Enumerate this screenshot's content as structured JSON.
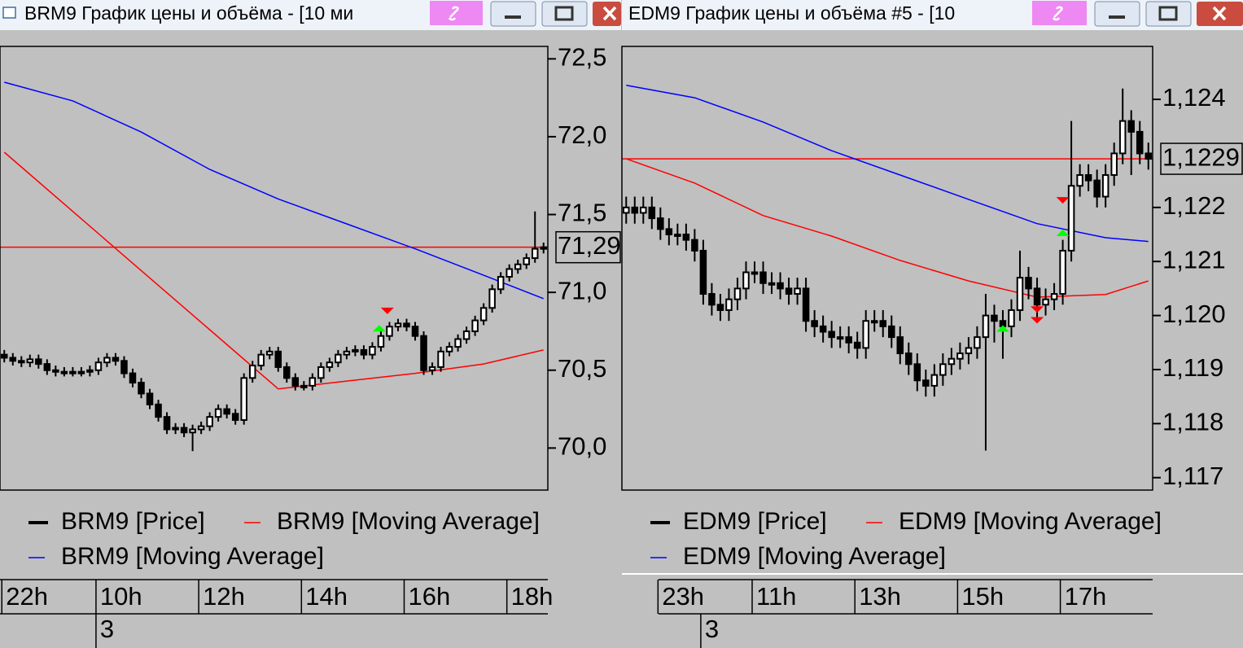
{
  "chart_data": [
    {
      "type": "candlestick",
      "title": "BRM9 График цены и объёма - [10 ми",
      "xlim": [
        -0.5,
        63.5
      ],
      "ylim": [
        69.73,
        72.58
      ],
      "yticks": [
        {
          "value": 70.0,
          "label": "70,0"
        },
        {
          "value": 70.5,
          "label": "70,5"
        },
        {
          "value": 71.0,
          "label": "71,0"
        },
        {
          "value": 71.5,
          "label": "71,5"
        },
        {
          "value": 72.0,
          "label": "72,0"
        },
        {
          "value": 72.5,
          "label": "72,5"
        }
      ],
      "xticks": [
        {
          "value": 0,
          "label": "22h"
        },
        {
          "value": 11,
          "label": "10h"
        },
        {
          "value": 23,
          "label": "12h"
        },
        {
          "value": 35,
          "label": "14h"
        },
        {
          "value": 47,
          "label": "16h"
        },
        {
          "value": 59,
          "label": "18h"
        }
      ],
      "day_ticks": [
        {
          "value": 11,
          "label": "3"
        }
      ],
      "series": [
        {
          "name": "BRM9 [Price]",
          "color": "#000000",
          "x": [
            0,
            1,
            2,
            3,
            4,
            5,
            6,
            7,
            8,
            9,
            10,
            11,
            12,
            13,
            14,
            15,
            16,
            17,
            18,
            19,
            20,
            21,
            22,
            23,
            24,
            25,
            26,
            27,
            28,
            29,
            30,
            31,
            32,
            33,
            34,
            35,
            36,
            37,
            38,
            39,
            40,
            41,
            42,
            43,
            44,
            45,
            46,
            47,
            48,
            49,
            50,
            51,
            52,
            53,
            54,
            55,
            56,
            57,
            58,
            59,
            60,
            61,
            62,
            63
          ],
          "open": [
            70.6,
            70.58,
            70.56,
            70.55,
            70.57,
            70.54,
            70.5,
            70.49,
            70.49,
            70.49,
            70.49,
            70.5,
            70.55,
            70.58,
            70.56,
            70.48,
            70.42,
            70.35,
            70.28,
            70.2,
            70.12,
            70.13,
            70.1,
            70.12,
            70.14,
            70.2,
            70.25,
            70.22,
            70.18,
            70.45,
            70.53,
            70.6,
            70.62,
            70.52,
            70.45,
            70.4,
            70.4,
            70.45,
            70.52,
            70.55,
            70.6,
            70.62,
            70.63,
            70.6,
            70.65,
            70.72,
            70.78,
            70.8,
            70.78,
            70.72,
            70.5,
            70.52,
            70.62,
            70.65,
            70.7,
            70.75,
            70.82,
            70.9,
            71.02,
            71.1,
            71.15,
            71.18,
            71.22,
            71.28
          ],
          "high": [
            70.63,
            70.61,
            70.59,
            70.6,
            70.6,
            70.57,
            70.53,
            70.52,
            70.52,
            70.52,
            70.53,
            70.58,
            70.61,
            70.61,
            70.59,
            70.51,
            70.45,
            70.38,
            70.31,
            70.23,
            70.16,
            70.16,
            70.15,
            70.17,
            70.23,
            70.28,
            70.28,
            70.25,
            70.48,
            70.56,
            70.63,
            70.65,
            70.65,
            70.55,
            70.48,
            70.43,
            70.48,
            70.55,
            70.58,
            70.63,
            70.65,
            70.66,
            70.66,
            70.68,
            70.75,
            70.81,
            70.83,
            70.83,
            70.81,
            70.75,
            70.55,
            70.65,
            70.68,
            70.73,
            70.78,
            70.85,
            70.93,
            71.05,
            71.13,
            71.18,
            71.21,
            71.25,
            71.52,
            71.32
          ],
          "low": [
            70.55,
            70.53,
            70.52,
            70.52,
            70.51,
            70.47,
            70.46,
            70.46,
            70.46,
            70.46,
            70.46,
            70.47,
            70.52,
            70.53,
            70.45,
            70.39,
            70.32,
            70.25,
            70.17,
            70.09,
            70.09,
            70.07,
            69.98,
            70.09,
            70.11,
            70.17,
            70.19,
            70.15,
            70.15,
            70.42,
            70.5,
            70.57,
            70.49,
            70.42,
            70.37,
            70.37,
            70.37,
            70.42,
            70.49,
            70.52,
            70.57,
            70.59,
            70.57,
            70.57,
            70.62,
            70.69,
            70.75,
            70.75,
            70.69,
            70.47,
            70.47,
            70.49,
            70.59,
            70.62,
            70.67,
            70.72,
            70.79,
            70.87,
            70.99,
            71.07,
            71.12,
            71.15,
            71.19,
            71.25
          ],
          "close": [
            70.58,
            70.56,
            70.55,
            70.57,
            70.54,
            70.5,
            70.49,
            70.49,
            70.49,
            70.49,
            70.5,
            70.55,
            70.58,
            70.56,
            70.48,
            70.42,
            70.35,
            70.28,
            70.2,
            70.12,
            70.13,
            70.1,
            70.12,
            70.14,
            70.2,
            70.25,
            70.22,
            70.18,
            70.45,
            70.53,
            70.6,
            70.62,
            70.52,
            70.45,
            70.4,
            70.4,
            70.45,
            70.52,
            70.55,
            70.6,
            70.62,
            70.63,
            70.6,
            70.65,
            70.72,
            70.78,
            70.8,
            70.78,
            70.72,
            70.5,
            70.52,
            70.62,
            70.65,
            70.7,
            70.75,
            70.82,
            70.9,
            71.02,
            71.1,
            71.15,
            71.18,
            71.22,
            71.28,
            71.29
          ]
        },
        {
          "name": "BRM9 [Moving Average]",
          "color": "#ff0000",
          "x": [
            0,
            8,
            16,
            24,
            32,
            40,
            48,
            56,
            63
          ],
          "values": [
            71.9,
            71.52,
            71.14,
            70.76,
            70.38,
            70.43,
            70.48,
            70.54,
            70.63
          ]
        },
        {
          "name": "BRM9 [Moving Average]",
          "color": "#0000ff",
          "x": [
            0,
            8,
            16,
            24,
            32,
            40,
            48,
            56,
            63
          ],
          "values": [
            72.35,
            72.23,
            72.03,
            71.79,
            71.6,
            71.44,
            71.28,
            71.11,
            70.96
          ]
        }
      ],
      "price_line": {
        "value": 71.29,
        "label": "71,29",
        "color": "#ff0000"
      },
      "buy_signals": {
        "color": "#00ff00",
        "x": [
          43.8
        ],
        "values": [
          70.79
        ]
      },
      "sell_signals": {
        "color": "#ff0000",
        "x": [
          44.75
        ],
        "values": [
          70.86
        ]
      }
    },
    {
      "type": "candlestick",
      "title": "EDM9 График цены и объёма #5 - [10",
      "xlim": [
        -0.5,
        61.5
      ],
      "ylim": [
        1.11677,
        1.12498
      ],
      "yticks": [
        {
          "value": 1.117,
          "label": "1,117"
        },
        {
          "value": 1.118,
          "label": "1,118"
        },
        {
          "value": 1.119,
          "label": "1,119"
        },
        {
          "value": 1.12,
          "label": "1,120"
        },
        {
          "value": 1.121,
          "label": "1,121"
        },
        {
          "value": 1.122,
          "label": "1,122"
        },
        {
          "value": 1.124,
          "label": "1,124"
        }
      ],
      "xticks": [
        {
          "value": 4,
          "label": "23h"
        },
        {
          "value": 15,
          "label": "11h"
        },
        {
          "value": 27,
          "label": "13h"
        },
        {
          "value": 39,
          "label": "15h"
        },
        {
          "value": 51,
          "label": "17h"
        }
      ],
      "day_ticks": [
        {
          "value": 9,
          "label": "3"
        }
      ],
      "series": [
        {
          "name": "EDM9 [Price]",
          "color": "#000000",
          "x": [
            0,
            1,
            2,
            3,
            4,
            5,
            6,
            7,
            8,
            9,
            10,
            11,
            12,
            13,
            14,
            15,
            16,
            17,
            18,
            19,
            20,
            21,
            22,
            23,
            24,
            25,
            26,
            27,
            28,
            29,
            30,
            31,
            32,
            33,
            34,
            35,
            36,
            37,
            38,
            39,
            40,
            41,
            42,
            43,
            44,
            45,
            46,
            47,
            48,
            49,
            50,
            51,
            52,
            53,
            54,
            55,
            56,
            57,
            58,
            59,
            60,
            61
          ],
          "open": [
            1.1219,
            1.122,
            1.1219,
            1.122,
            1.1218,
            1.1216,
            1.1215,
            1.1215,
            1.1214,
            1.1212,
            1.1204,
            1.1202,
            1.1201,
            1.1203,
            1.1205,
            1.1208,
            1.1208,
            1.1206,
            1.1206,
            1.1205,
            1.1204,
            1.1205,
            1.1199,
            1.1198,
            1.1197,
            1.1196,
            1.1196,
            1.1195,
            1.1194,
            1.1199,
            1.1199,
            1.1198,
            1.1196,
            1.1193,
            1.1191,
            1.1188,
            1.1187,
            1.1189,
            1.1191,
            1.1192,
            1.1193,
            1.1194,
            1.1196,
            1.12,
            1.1199,
            1.1198,
            1.1201,
            1.1207,
            1.1205,
            1.1202,
            1.1203,
            1.1204,
            1.1212,
            1.1224,
            1.1226,
            1.1225,
            1.1222,
            1.1226,
            1.123,
            1.1236,
            1.1234,
            1.123
          ],
          "high": [
            1.1222,
            1.1222,
            1.1222,
            1.1222,
            1.122,
            1.1218,
            1.1217,
            1.1217,
            1.1216,
            1.1214,
            1.1206,
            1.1204,
            1.1205,
            1.1207,
            1.121,
            1.121,
            1.121,
            1.1208,
            1.1208,
            1.1207,
            1.1207,
            1.1207,
            1.1201,
            1.12,
            1.1199,
            1.1198,
            1.1198,
            1.1197,
            1.1201,
            1.1201,
            1.1201,
            1.12,
            1.1198,
            1.1195,
            1.1193,
            1.119,
            1.1191,
            1.1193,
            1.1194,
            1.1195,
            1.1196,
            1.1198,
            1.1204,
            1.1202,
            1.1201,
            1.1203,
            1.1212,
            1.1209,
            1.1207,
            1.1205,
            1.1206,
            1.1214,
            1.1236,
            1.1228,
            1.1228,
            1.1227,
            1.1228,
            1.1232,
            1.1242,
            1.1238,
            1.1236,
            1.1232
          ],
          "low": [
            1.1217,
            1.1217,
            1.1217,
            1.1216,
            1.1214,
            1.1213,
            1.1213,
            1.1212,
            1.121,
            1.1202,
            1.12,
            1.1199,
            1.1199,
            1.1201,
            1.1203,
            1.1206,
            1.1204,
            1.1204,
            1.1203,
            1.1202,
            1.1202,
            1.1197,
            1.1196,
            1.1195,
            1.1194,
            1.1194,
            1.1193,
            1.1192,
            1.1192,
            1.1197,
            1.1196,
            1.1194,
            1.1191,
            1.1189,
            1.1186,
            1.1185,
            1.1185,
            1.1187,
            1.1189,
            1.119,
            1.1191,
            1.1192,
            1.1175,
            1.1195,
            1.1192,
            1.1196,
            1.1199,
            1.1203,
            1.1199,
            1.12,
            1.1201,
            1.1202,
            1.121,
            1.1222,
            1.1223,
            1.122,
            1.122,
            1.1224,
            1.1228,
            1.1226,
            1.1228,
            1.1227
          ],
          "close": [
            1.122,
            1.1219,
            1.122,
            1.1218,
            1.1216,
            1.1215,
            1.1215,
            1.1214,
            1.1212,
            1.1204,
            1.1202,
            1.1201,
            1.1203,
            1.1205,
            1.1208,
            1.1208,
            1.1206,
            1.1206,
            1.1205,
            1.1204,
            1.1205,
            1.1199,
            1.1198,
            1.1197,
            1.1196,
            1.1196,
            1.1195,
            1.1194,
            1.1199,
            1.1199,
            1.1198,
            1.1196,
            1.1193,
            1.1191,
            1.1188,
            1.1187,
            1.1189,
            1.1191,
            1.1192,
            1.1193,
            1.1194,
            1.1196,
            1.12,
            1.1199,
            1.1198,
            1.1201,
            1.1207,
            1.1205,
            1.1202,
            1.1203,
            1.1204,
            1.1212,
            1.1224,
            1.1226,
            1.1225,
            1.1222,
            1.1226,
            1.123,
            1.1236,
            1.1234,
            1.123,
            1.1229
          ]
        },
        {
          "name": "EDM9 [Moving Average]",
          "color": "#ff0000",
          "x": [
            0,
            8,
            16,
            24,
            32,
            40,
            48,
            56,
            61
          ],
          "values": [
            1.1229,
            1.12245,
            1.12185,
            1.12147,
            1.12102,
            1.12064,
            1.12034,
            1.12039,
            1.12064
          ]
        },
        {
          "name": "EDM9 [Moving Average]",
          "color": "#0000ff",
          "x": [
            0,
            8,
            16,
            24,
            32,
            40,
            48,
            56,
            61
          ],
          "values": [
            1.12426,
            1.12403,
            1.12358,
            1.12305,
            1.1226,
            1.12215,
            1.1217,
            1.12144,
            1.12137
          ]
        }
      ],
      "price_line": {
        "value": 1.1229,
        "label": "1,1229",
        "color": "#ff0000"
      },
      "buy_signals": {
        "color": "#00ff00",
        "x": [
          51,
          44
        ],
        "values": [
          1.12159,
          1.11982
        ]
      },
      "sell_signals": {
        "color": "#ff0000",
        "x": [
          51,
          48,
          48
        ],
        "values": [
          1.12207,
          1.12005,
          1.11985
        ]
      }
    }
  ]
}
